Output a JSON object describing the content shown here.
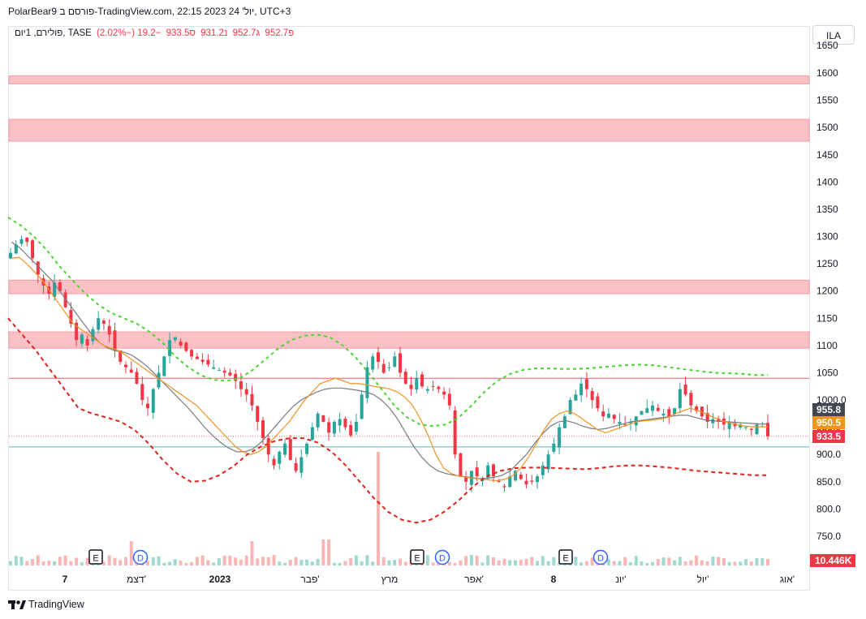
{
  "header": {
    "title": "PolarBear9 פורסם ב-TradingView.com, 22:15 2023 יול' 24, UTC+3"
  },
  "ohlc": {
    "symbol": "פולירם, 1יום, TASE",
    "open": "פ952.7",
    "high": "ג952.7",
    "low": "נ931.2",
    "close": "ס933.5",
    "change": "−19.2 (−2.02%)"
  },
  "currency_button": "ILA",
  "footer": {
    "brand": "TradingView"
  },
  "colors": {
    "up": "#26a69a",
    "down": "#f23645",
    "zone": "#f9b7bc",
    "ma_fast": "#f0931f",
    "ma_slow": "#787b86",
    "band_upper": "#4cd337",
    "band_lower": "#e0231b"
  },
  "chart_data": {
    "type": "candlestick",
    "y_ticks": [
      "1600",
      "1550",
      "1500",
      "1450",
      "1400",
      "1350",
      "1300",
      "1250",
      "1200",
      "1150",
      "1100",
      "1050",
      "1000.0",
      "950.0",
      "900.0",
      "850.0",
      "800.0",
      "750.0"
    ],
    "x_labels": [
      "7",
      "דצמ'",
      "2023",
      "פבר'",
      "מרץ",
      "אפר'",
      "8",
      "יונ'",
      "יול'",
      "אוג'"
    ],
    "price_labels": [
      {
        "value": 955.8,
        "text": "955.8",
        "color": "#434651"
      },
      {
        "value": 950.5,
        "text": "950.5",
        "color": "#f0931f"
      },
      {
        "value": 933.5,
        "text": "933.5",
        "color": "#f23645"
      }
    ],
    "volume_label": "10.446K",
    "resistance_zones": [
      [
        1580,
        1595
      ],
      [
        1475,
        1515
      ],
      [
        1195,
        1220
      ],
      [
        1095,
        1125
      ]
    ],
    "horizontal_lines": [
      {
        "value": 1040,
        "color": "#f23645"
      },
      {
        "value": 933.5,
        "color": "#f23645",
        "style": "dotted"
      },
      {
        "value": 914,
        "color": "#26a69a"
      }
    ],
    "events": [
      "E",
      "D",
      "E",
      "D",
      "E",
      "D"
    ],
    "close_series": [
      1270,
      1285,
      1295,
      1290,
      1260,
      1230,
      1210,
      1195,
      1215,
      1200,
      1170,
      1140,
      1110,
      1120,
      1100,
      1130,
      1150,
      1140,
      1120,
      1090,
      1070,
      1060,
      1050,
      1030,
      1000,
      985,
      1020,
      1050,
      1080,
      1110,
      1115,
      1100,
      1090,
      1080,
      1075,
      1070,
      1065,
      1060,
      1055,
      1050,
      1045,
      1035,
      1020,
      1010,
      990,
      960,
      930,
      900,
      880,
      905,
      920,
      890,
      870,
      895,
      920,
      950,
      975,
      960,
      940,
      960,
      965,
      950,
      935,
      960,
      1010,
      1060,
      1080,
      1070,
      1050,
      1060,
      1080,
      1050,
      1030,
      1020,
      1040,
      1025,
      1020,
      1025,
      1020,
      1010,
      990,
      900,
      860,
      850,
      870,
      860,
      855,
      880,
      860,
      850,
      840,
      860,
      870,
      855,
      845,
      850,
      860,
      880,
      900,
      920,
      950,
      970,
      1000,
      1010,
      1030,
      1020,
      1000,
      985,
      970,
      975,
      965,
      960,
      955,
      960,
      970,
      980,
      985,
      990,
      980,
      975,
      970,
      985,
      1020,
      1010,
      990,
      980,
      970,
      960,
      965,
      960,
      955,
      958,
      952,
      955,
      950,
      945,
      955,
      952,
      933.5
    ],
    "ma_fast": [
      1260,
      1262,
      1250,
      1235,
      1220,
      1200,
      1180,
      1160,
      1140,
      1130,
      1120,
      1110,
      1100,
      1095,
      1090,
      1080,
      1070,
      1060,
      1050,
      1040,
      1030,
      1020,
      1010,
      1000,
      990,
      975,
      960,
      945,
      930,
      915,
      905,
      900,
      905,
      915,
      930,
      945,
      960,
      980,
      1000,
      1015,
      1030,
      1035,
      1040,
      1035,
      1030,
      1030,
      1028,
      1025,
      1023,
      1020,
      1015,
      1005,
      990,
      965,
      935,
      900,
      875,
      865,
      860,
      858,
      856,
      855,
      853,
      852,
      855,
      862,
      875,
      895,
      920,
      945,
      965,
      975,
      980,
      975,
      965,
      955,
      945,
      940,
      945,
      950,
      955,
      960,
      962,
      963,
      965,
      968,
      975,
      980,
      985,
      980,
      975,
      968,
      962,
      958,
      955,
      952,
      951,
      951,
      950.5
    ],
    "ma_slow": [
      1290,
      1280,
      1265,
      1250,
      1235,
      1220,
      1200,
      1180,
      1160,
      1140,
      1120,
      1105,
      1095,
      1090,
      1088,
      1082,
      1072,
      1060,
      1045,
      1030,
      1015,
      1000,
      985,
      968,
      950,
      935,
      922,
      912,
      905,
      905,
      910,
      922,
      938,
      955,
      972,
      988,
      1000,
      1008,
      1015,
      1020,
      1022,
      1022,
      1020,
      1018,
      1015,
      1010,
      1000,
      985,
      965,
      940,
      915,
      895,
      880,
      870,
      865,
      862,
      860,
      858,
      856,
      856,
      858,
      862,
      870,
      885,
      900,
      920,
      938,
      952,
      960,
      962,
      958,
      952,
      948,
      946,
      948,
      952,
      956,
      960,
      962,
      964,
      966,
      968,
      970,
      972,
      972,
      968,
      964,
      962,
      961,
      960,
      959,
      958,
      957,
      956,
      955.8
    ],
    "upper_band": [
      1335,
      1320,
      1300,
      1275,
      1245,
      1220,
      1195,
      1175,
      1160,
      1150,
      1140,
      1125,
      1105,
      1080,
      1060,
      1045,
      1037,
      1035,
      1040,
      1055,
      1075,
      1095,
      1110,
      1118,
      1120,
      1115,
      1100,
      1078,
      1050,
      1020,
      990,
      968,
      955,
      952,
      955,
      968,
      990,
      1015,
      1035,
      1048,
      1055,
      1058,
      1058,
      1057,
      1057,
      1058,
      1060,
      1062,
      1064,
      1065,
      1064,
      1061,
      1058,
      1055,
      1052,
      1050,
      1049,
      1048,
      1046,
      1046
    ],
    "lower_band": [
      1150,
      1120,
      1090,
      1055,
      1020,
      985,
      975,
      968,
      960,
      945,
      920,
      890,
      865,
      850,
      852,
      862,
      878,
      900,
      915,
      925,
      930,
      930,
      922,
      905,
      880,
      850,
      820,
      795,
      780,
      775,
      780,
      795,
      815,
      840,
      860,
      870,
      875,
      876,
      876,
      875,
      874,
      873,
      875,
      878,
      880,
      880,
      878,
      876,
      873,
      870,
      868,
      866,
      864,
      862,
      862
    ]
  }
}
